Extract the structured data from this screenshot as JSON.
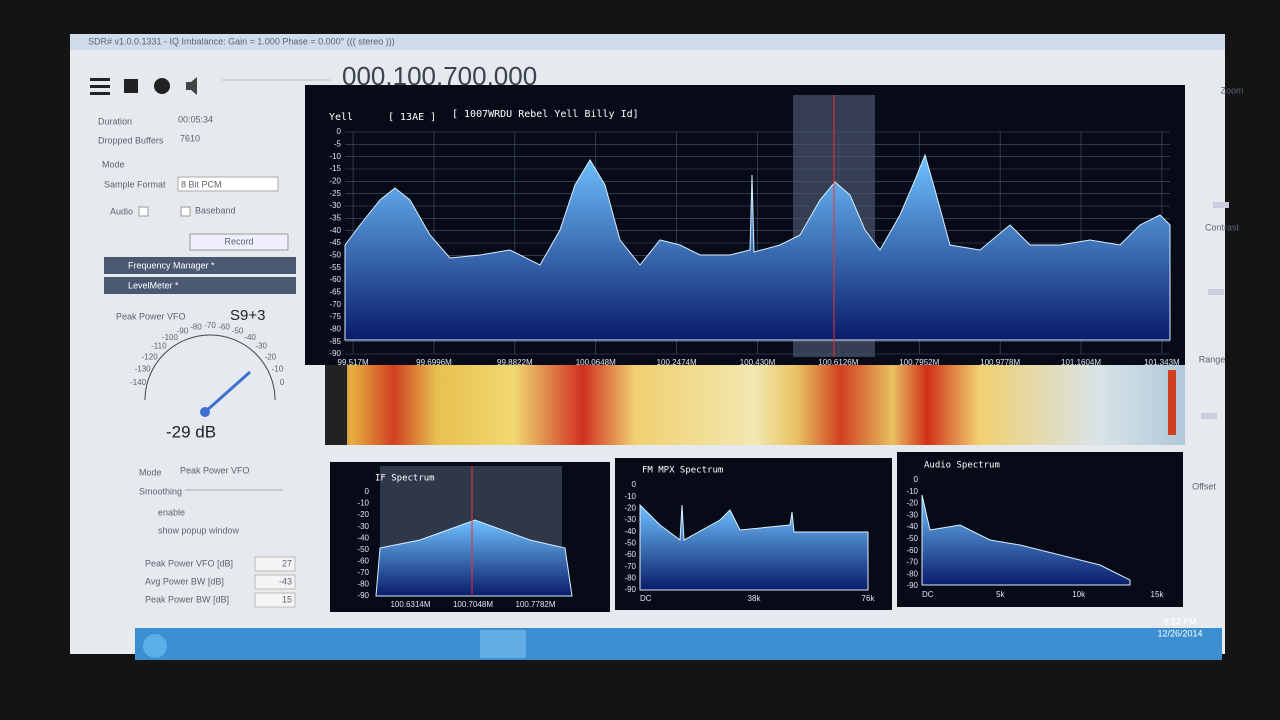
{
  "window": {
    "title": "SDR# v1.0.0.1331 - IQ Imbalance: Gain = 1.000 Phase = 0.000° ((( stereo )))",
    "frequency": "000.100.700.000"
  },
  "left_panel": {
    "duration_label": "Duration",
    "duration": "00:05:34",
    "dropped_label": "Dropped Buffers",
    "dropped": "7610",
    "mode_label": "Mode",
    "sample_format_label": "Sample Format",
    "sample_format": "8 Bit PCM",
    "audio_label": "Audio",
    "baseband_label": "Baseband",
    "record": "Record",
    "frequency_manager": "Frequency Manager *",
    "level_meter": "LevelMeter *"
  },
  "level_meter": {
    "source": "Peak Power VFO",
    "s_reading": "S9+3",
    "scale": [
      "-140",
      "-130",
      "-120",
      "-110",
      "-100",
      "-90",
      "-80",
      "-70",
      "-60",
      "-50",
      "-40",
      "-30",
      "-20",
      "-10",
      "0"
    ],
    "reading": "-29 dB",
    "mode_label": "Mode",
    "mode": "Peak Power VFO",
    "smoothing_label": "Smoothing",
    "enable": "enable",
    "popup": "show popup window",
    "stats": [
      {
        "label": "Peak Power VFO [dB]",
        "value": "27"
      },
      {
        "label": "Avg Power BW [dB]",
        "value": "-43"
      },
      {
        "label": "Peak Power BW [dB]",
        "value": "15"
      }
    ]
  },
  "spectrum": {
    "rds_ps": "Yell",
    "rds_pi": "[ 13AE ]",
    "rds_rt": "[ 1007WRDU Rebel Yell Billy Id]",
    "yticks": [
      "0",
      "-5",
      "-10",
      "-15",
      "-20",
      "-25",
      "-30",
      "-35",
      "-40",
      "-45",
      "-50",
      "-55",
      "-60",
      "-65",
      "-70",
      "-75",
      "-80",
      "-85",
      "-90"
    ],
    "xticks": [
      "99.517M",
      "99.6996M",
      "99.8822M",
      "100.0648M",
      "100.2474M",
      "100.430M",
      "100.6126M",
      "100.7952M",
      "100.9778M",
      "101.1604M",
      "101.343M"
    ]
  },
  "if_spectrum": {
    "title": "IF Spectrum",
    "yticks": [
      "0",
      "-10",
      "-20",
      "-30",
      "-40",
      "-50",
      "-60",
      "-70",
      "-80",
      "-90"
    ],
    "xticks": [
      "100.6314M",
      "100.7048M",
      "100.7782M"
    ]
  },
  "fm_mpx_spectrum": {
    "title": "FM MPX Spectrum",
    "yticks": [
      "0",
      "-10",
      "-20",
      "-30",
      "-40",
      "-50",
      "-60",
      "-70",
      "-80",
      "-90"
    ],
    "xticks": [
      "DC",
      "38k",
      "76k"
    ]
  },
  "audio_spectrum": {
    "title": "Audio Spectrum",
    "yticks": [
      "0",
      "-10",
      "-20",
      "-30",
      "-40",
      "-50",
      "-60",
      "-70",
      "-80",
      "-90"
    ],
    "xticks": [
      "DC",
      "5k",
      "10k",
      "15k"
    ]
  },
  "right_panel": {
    "zoom": "Zoom",
    "contrast": "Contrast",
    "range": "Range",
    "offset": "Offset"
  },
  "taskbar": {
    "time": "8:22 PM",
    "date": "12/26/2014"
  }
}
